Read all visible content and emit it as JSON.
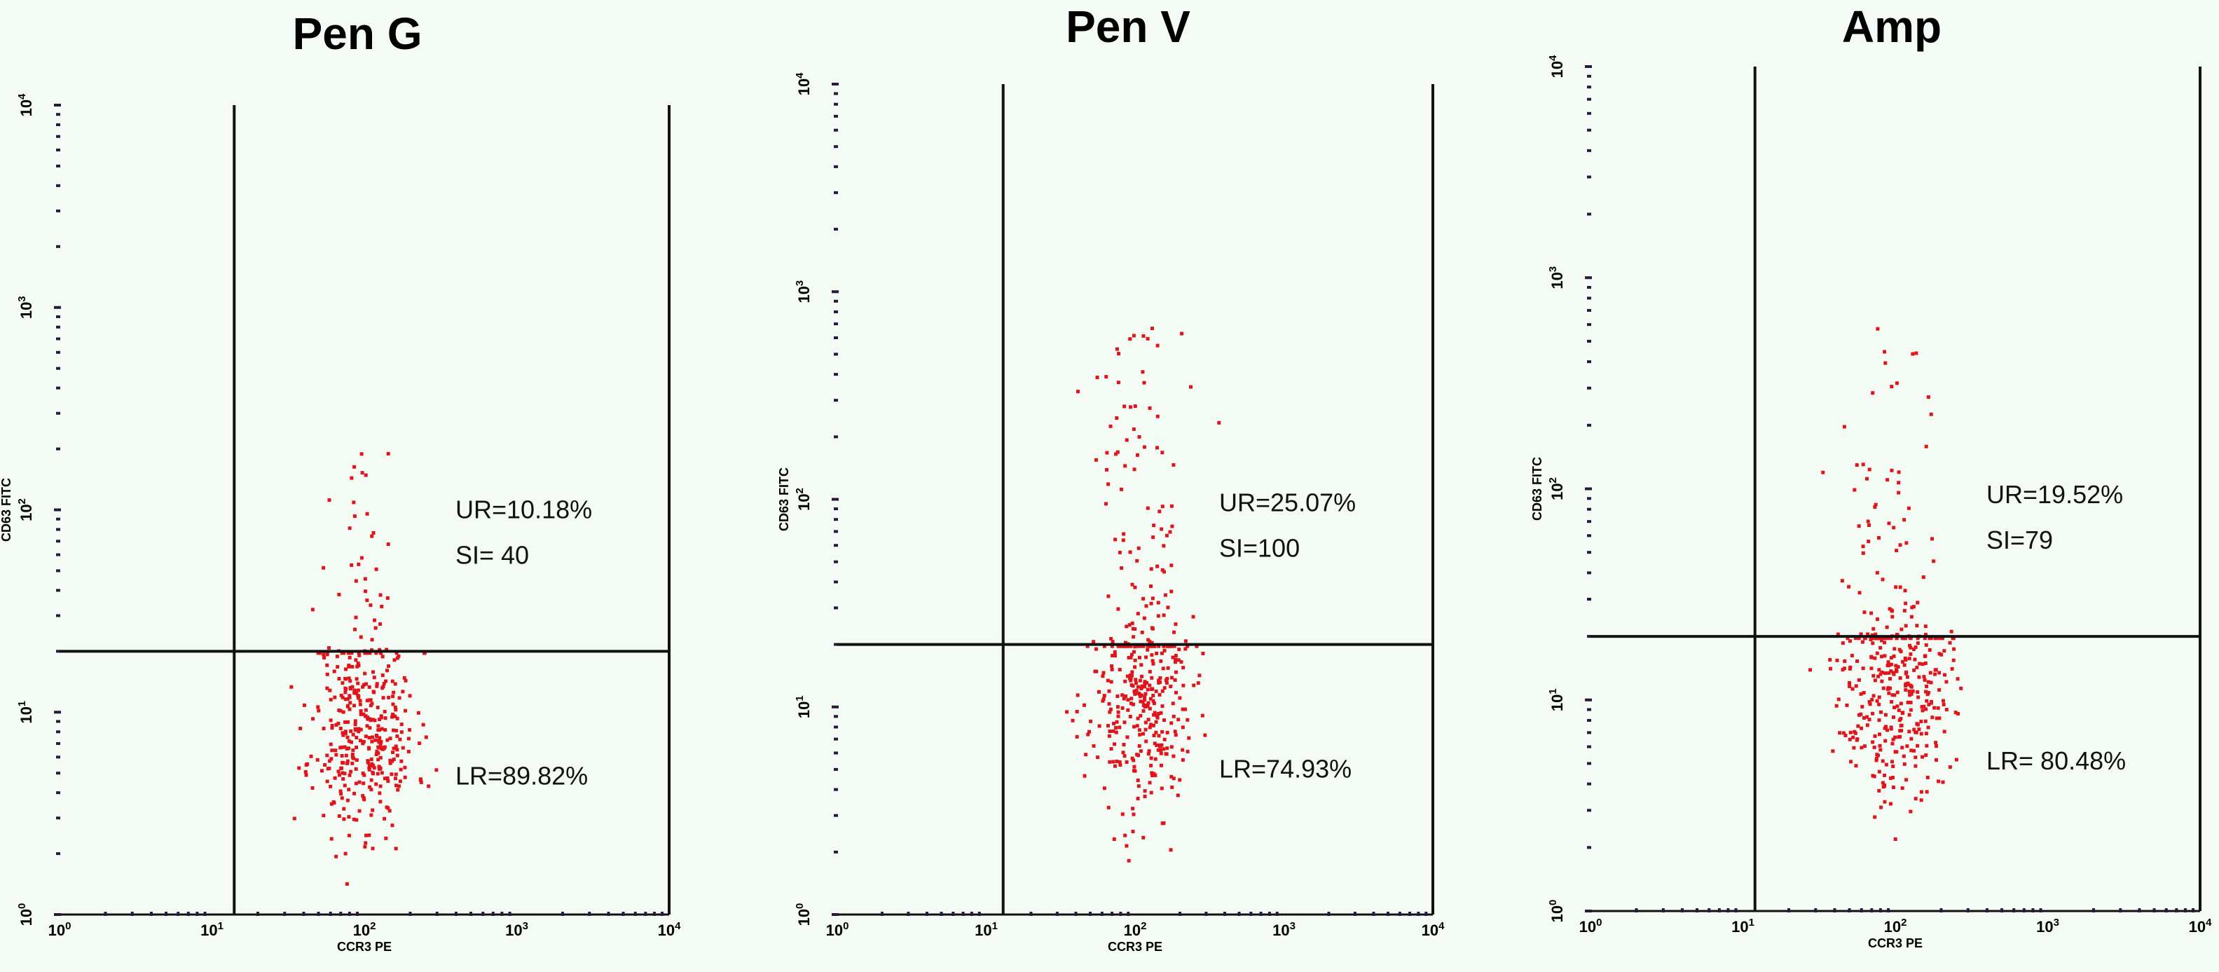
{
  "figure": {
    "background": "#f3fbf4",
    "point_color": "#e0141c",
    "line_color": "#111111",
    "tick_labels": [
      "10^0",
      "10^1",
      "10^2",
      "10^3",
      "10^4"
    ],
    "x_axis_label": "CCR3 PE",
    "y_axis_label": "CD63 FITC"
  },
  "chart_data": [
    {
      "type": "scatter",
      "title": "Pen G",
      "xlabel": "CCR3 PE",
      "ylabel": "CD63 FITC",
      "scale": "log",
      "xlim": [
        1,
        10000
      ],
      "ylim": [
        1,
        10000
      ],
      "gate_x": 14,
      "gate_y": 20,
      "upper_right_label": "UR=10.18%",
      "si_label": "SI= 40",
      "lower_right_label": "LR=89.82%",
      "quad_text_pos": "right",
      "cluster": {
        "center_x": 100,
        "center_y": 8,
        "spread_x": 0.17,
        "spread_y": 0.25,
        "count": 420,
        "upper_count": 42,
        "upper_max_y": 220,
        "seed": 11
      }
    },
    {
      "type": "scatter",
      "title": "Pen V",
      "xlabel": "CCR3 PE",
      "ylabel": "CD63 FITC",
      "scale": "log",
      "xlim": [
        1,
        10000
      ],
      "ylim": [
        1,
        10000
      ],
      "gate_x": 13,
      "gate_y": 20,
      "upper_right_label": "UR=25.07%",
      "si_label": "SI=100",
      "lower_right_label": "LR=74.93%",
      "quad_text_pos": "right",
      "cluster": {
        "center_x": 110,
        "center_y": 10,
        "spread_x": 0.17,
        "spread_y": 0.25,
        "count": 420,
        "upper_count": 105,
        "upper_max_y": 700,
        "seed": 23
      }
    },
    {
      "type": "scatter",
      "title": "Amp",
      "xlabel": "CCR3 PE",
      "ylabel": "CD63 FITC",
      "scale": "log",
      "xlim": [
        1,
        10000
      ],
      "ylim": [
        1,
        10000
      ],
      "gate_x": 12,
      "gate_y": 20,
      "upper_right_label": "UR=19.52%",
      "si_label": "SI=79",
      "lower_right_label": "LR= 80.48%",
      "quad_text_pos": "right",
      "cluster": {
        "center_x": 100,
        "center_y": 11,
        "spread_x": 0.18,
        "spread_y": 0.25,
        "count": 420,
        "upper_count": 82,
        "upper_max_y": 700,
        "seed": 37
      }
    }
  ]
}
